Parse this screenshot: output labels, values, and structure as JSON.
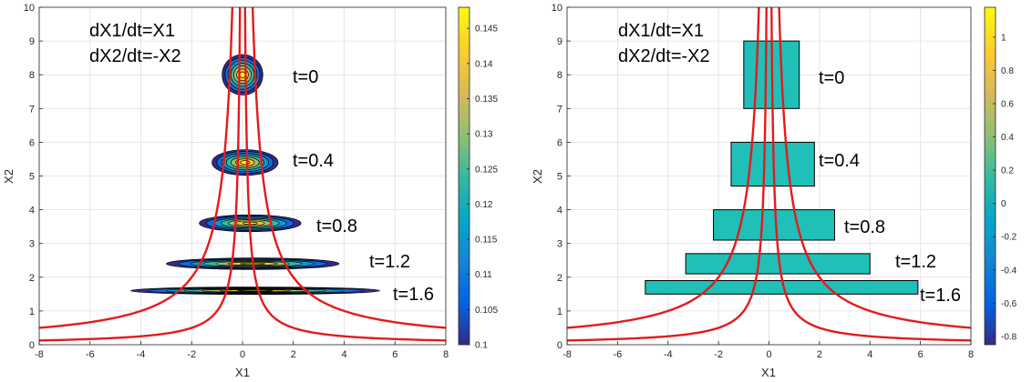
{
  "chart_data": [
    {
      "type": "contour",
      "xlabel": "X1",
      "ylabel": "X2",
      "xlim": [
        -8,
        8
      ],
      "ylim": [
        0,
        10
      ],
      "xticks": [
        "-8",
        "-6",
        "-4",
        "-2",
        "0",
        "2",
        "4",
        "6",
        "8"
      ],
      "yticks": [
        "0",
        "1",
        "2",
        "3",
        "4",
        "5",
        "6",
        "7",
        "8",
        "9",
        "10"
      ],
      "grid": true,
      "equations": [
        "dX1/dt=X1",
        "dX2/dt=-X2"
      ],
      "colorbar": {
        "range": [
          0.1,
          0.148
        ],
        "ticks": [
          "0.1",
          "0.105",
          "0.11",
          "0.115",
          "0.12",
          "0.125",
          "0.13",
          "0.135",
          "0.14",
          "0.145"
        ]
      },
      "trajectories": {
        "color": "#e41a1c",
        "start_points": [
          [
            -0.4,
            10
          ],
          [
            -0.1,
            10
          ],
          [
            0.1,
            10
          ],
          [
            0.4,
            10
          ]
        ]
      },
      "snapshots": [
        {
          "label": "t=0",
          "t": 0.0,
          "center": [
            0.0,
            8.0
          ],
          "half_width_x": 0.8,
          "half_width_y": 0.6
        },
        {
          "label": "t=0.4",
          "t": 0.4,
          "center": [
            0.1,
            5.4
          ],
          "half_width_x": 1.3,
          "half_width_y": 0.38
        },
        {
          "label": "t=0.8",
          "t": 0.8,
          "center": [
            0.3,
            3.6
          ],
          "half_width_x": 2.0,
          "half_width_y": 0.25
        },
        {
          "label": "t=1.2",
          "t": 1.2,
          "center": [
            0.4,
            2.4
          ],
          "half_width_x": 3.4,
          "half_width_y": 0.17
        },
        {
          "label": "t=1.6",
          "t": 1.6,
          "center": [
            0.5,
            1.6
          ],
          "half_width_x": 4.9,
          "half_width_y": 0.11
        }
      ]
    },
    {
      "type": "region",
      "xlabel": "X1",
      "ylabel": "X2",
      "xlim": [
        -8,
        8
      ],
      "ylim": [
        0,
        10
      ],
      "xticks": [
        "-8",
        "-6",
        "-4",
        "-2",
        "0",
        "2",
        "4",
        "6",
        "8"
      ],
      "yticks": [
        "0",
        "1",
        "2",
        "3",
        "4",
        "5",
        "6",
        "7",
        "8",
        "9",
        "10"
      ],
      "grid": true,
      "equations": [
        "dX1/dt=X1",
        "dX2/dt=-X2"
      ],
      "fill_color": "#20bfb8",
      "colorbar": {
        "range": [
          -0.85,
          1.18
        ],
        "ticks": [
          "-0.8",
          "-0.6",
          "-0.4",
          "-0.2",
          "0",
          "0.2",
          "0.4",
          "0.6",
          "0.8",
          "1"
        ]
      },
      "trajectories": {
        "color": "#e41a1c",
        "start_points": [
          [
            -0.4,
            10
          ],
          [
            -0.1,
            10
          ],
          [
            0.1,
            10
          ],
          [
            0.4,
            10
          ]
        ]
      },
      "snapshots": [
        {
          "label": "t=0",
          "x_range": [
            -1.0,
            1.2
          ],
          "y_range": [
            7.0,
            9.0
          ]
        },
        {
          "label": "t=0.4",
          "x_range": [
            -1.5,
            1.8
          ],
          "y_range": [
            4.7,
            6.0
          ]
        },
        {
          "label": "t=0.8",
          "x_range": [
            -2.2,
            2.6
          ],
          "y_range": [
            3.1,
            4.0
          ]
        },
        {
          "label": "t=1.2",
          "x_range": [
            -3.3,
            4.0
          ],
          "y_range": [
            2.1,
            2.7
          ]
        },
        {
          "label": "t=1.6",
          "x_range": [
            -4.9,
            5.9
          ],
          "y_range": [
            1.5,
            1.9
          ]
        }
      ]
    }
  ]
}
